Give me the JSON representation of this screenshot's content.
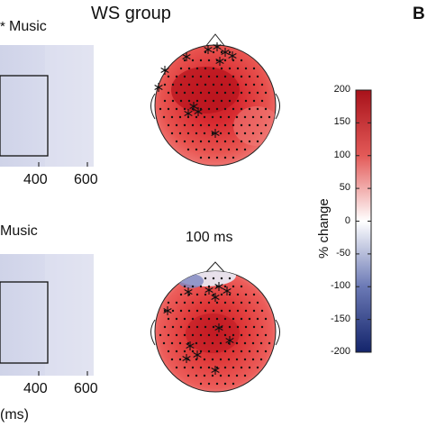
{
  "figure": {
    "title": "WS group",
    "panel_letter": "B",
    "top_panel": {
      "label": "Music",
      "x_ticks": [
        "400",
        "600"
      ]
    },
    "bottom_panel": {
      "label": "Music",
      "x_ticks": [
        "400",
        "600"
      ],
      "x_axis_label": "(ms)"
    },
    "topomap_time_label": "100 ms",
    "colorbar": {
      "label": "% change",
      "ticks": [
        "200",
        "150",
        "100",
        "50",
        "0",
        "-50",
        "-100",
        "-150",
        "-200"
      ],
      "range": [
        -200,
        200
      ],
      "colors": {
        "high": "#a8111a",
        "mid": "#ffffff",
        "low": "#13246b"
      }
    }
  }
}
